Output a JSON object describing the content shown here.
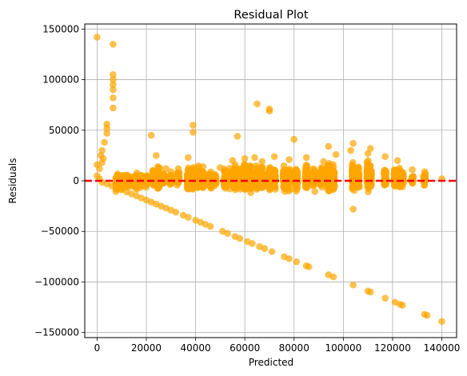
{
  "chart_data": {
    "type": "scatter",
    "title": "Residual Plot",
    "xlabel": "Predicted",
    "ylabel": "Residuals",
    "xlim": [
      -5000,
      146000
    ],
    "ylim": [
      -155000,
      155000
    ],
    "xticks": [
      0,
      20000,
      40000,
      60000,
      80000,
      100000,
      120000,
      140000
    ],
    "yticks": [
      -150000,
      -100000,
      -50000,
      0,
      50000,
      100000,
      150000
    ],
    "grid": true,
    "reference_line": {
      "y": 0,
      "color": "#ff0000",
      "style": "dashed"
    },
    "point_color": "#ffa500",
    "point_opacity": 0.7,
    "series": [
      {
        "values": [
          [
            0,
            142000
          ],
          [
            6500,
            135000
          ],
          [
            6500,
            105000
          ],
          [
            6500,
            100000
          ],
          [
            6500,
            95000
          ],
          [
            6500,
            90000
          ],
          [
            6500,
            82000
          ],
          [
            6500,
            72000
          ],
          [
            4000,
            56000
          ],
          [
            4000,
            52000
          ],
          [
            4000,
            47000
          ],
          [
            3000,
            38000
          ],
          [
            2000,
            30000
          ],
          [
            1500,
            25000
          ],
          [
            2500,
            22000
          ],
          [
            2000,
            18000
          ],
          [
            0,
            16000
          ],
          [
            1000,
            12000
          ],
          [
            0,
            5000
          ],
          [
            1000,
            2000
          ],
          [
            22000,
            45000
          ],
          [
            39000,
            55000
          ],
          [
            39000,
            48000
          ],
          [
            65000,
            76000
          ],
          [
            70000,
            71000
          ],
          [
            70000,
            69000
          ],
          [
            57000,
            44000
          ],
          [
            80000,
            41000
          ],
          [
            104000,
            37000
          ],
          [
            111000,
            32000
          ],
          [
            94000,
            34000
          ],
          [
            24000,
            25000
          ],
          [
            37000,
            23000
          ],
          [
            25000,
            13000
          ],
          [
            28000,
            12000
          ],
          [
            30000,
            9000
          ],
          [
            33000,
            12000
          ],
          [
            43000,
            14000
          ],
          [
            50000,
            13000
          ],
          [
            55000,
            20000
          ],
          [
            60000,
            22000
          ],
          [
            64000,
            23000
          ],
          [
            67000,
            19000
          ],
          [
            72000,
            24000
          ],
          [
            78000,
            21000
          ],
          [
            85000,
            23000
          ],
          [
            92000,
            19000
          ],
          [
            97000,
            26000
          ],
          [
            103000,
            30000
          ],
          [
            110000,
            27000
          ],
          [
            117000,
            24000
          ],
          [
            122000,
            20000
          ],
          [
            128000,
            11000
          ],
          [
            133000,
            9000
          ],
          [
            104000,
            -28000
          ],
          [
            79000,
            -8000
          ],
          [
            78000,
            -10000
          ],
          [
            85000,
            -7000
          ],
          [
            94000,
            -10000
          ],
          [
            96000,
            -8000
          ],
          [
            110000,
            -6000
          ],
          [
            124000,
            -3000
          ],
          [
            133000,
            -4000
          ],
          [
            92000,
            -4000
          ],
          [
            140000,
            2000
          ],
          [
            2000,
            -1500
          ],
          [
            4000,
            -3000
          ],
          [
            6000,
            -5000
          ],
          [
            8000,
            -7000
          ],
          [
            10000,
            -9000
          ],
          [
            12000,
            -11000
          ],
          [
            14000,
            -13000
          ],
          [
            16000,
            -15000
          ],
          [
            18000,
            -17000
          ],
          [
            20000,
            -19000
          ],
          [
            22000,
            -21000
          ],
          [
            24000,
            -23000
          ],
          [
            26000,
            -25000
          ],
          [
            28000,
            -27000
          ],
          [
            30000,
            -29000
          ],
          [
            32000,
            -31000
          ],
          [
            35000,
            -34000
          ],
          [
            37000,
            -36000
          ],
          [
            40000,
            -39000
          ],
          [
            42000,
            -41000
          ],
          [
            44000,
            -43000
          ],
          [
            46000,
            -45000
          ],
          [
            51000,
            -50000
          ],
          [
            53000,
            -52000
          ],
          [
            56000,
            -55000
          ],
          [
            58000,
            -57000
          ],
          [
            61000,
            -60000
          ],
          [
            63000,
            -62000
          ],
          [
            66000,
            -65000
          ],
          [
            68000,
            -67000
          ],
          [
            71000,
            -70000
          ],
          [
            76000,
            -75000
          ],
          [
            78000,
            -77000
          ],
          [
            81000,
            -80000
          ],
          [
            85000,
            -84000
          ],
          [
            86000,
            -85000
          ],
          [
            94000,
            -93000
          ],
          [
            96000,
            -95000
          ],
          [
            104000,
            -103000
          ],
          [
            110000,
            -109000
          ],
          [
            111000,
            -110000
          ],
          [
            117000,
            -116000
          ],
          [
            121000,
            -120000
          ],
          [
            123000,
            -122000
          ],
          [
            124000,
            -123000
          ],
          [
            133000,
            -132000
          ],
          [
            134000,
            -133000
          ],
          [
            140000,
            -139000
          ]
        ],
        "clusters": [
          [
            8000,
            -2000,
            10000,
            60
          ],
          [
            10000,
            -1000,
            8000,
            50
          ],
          [
            12000,
            0,
            8000,
            50
          ],
          [
            14000,
            -1000,
            6000,
            30
          ],
          [
            16000,
            0,
            10000,
            40
          ],
          [
            18000,
            -1000,
            8000,
            30
          ],
          [
            20000,
            0,
            8000,
            30
          ],
          [
            23000,
            2000,
            10000,
            40
          ],
          [
            25000,
            2000,
            14000,
            60
          ],
          [
            27000,
            1000,
            8000,
            30
          ],
          [
            30000,
            1000,
            8000,
            30
          ],
          [
            33000,
            2000,
            10000,
            40
          ],
          [
            37000,
            2000,
            14000,
            60
          ],
          [
            39000,
            3000,
            15000,
            80
          ],
          [
            41000,
            2000,
            14000,
            60
          ],
          [
            43000,
            1000,
            12000,
            50
          ],
          [
            46000,
            1000,
            10000,
            40
          ],
          [
            48000,
            2000,
            8000,
            30
          ],
          [
            52000,
            2000,
            14000,
            60
          ],
          [
            54000,
            2000,
            12000,
            50
          ],
          [
            56000,
            3000,
            16000,
            80
          ],
          [
            58000,
            2000,
            14000,
            70
          ],
          [
            60000,
            3000,
            16000,
            80
          ],
          [
            62000,
            3000,
            16000,
            90
          ],
          [
            65000,
            3000,
            15000,
            80
          ],
          [
            67000,
            2000,
            14000,
            60
          ],
          [
            70000,
            3000,
            16000,
            80
          ],
          [
            72000,
            2000,
            14000,
            60
          ],
          [
            76000,
            3000,
            16000,
            70
          ],
          [
            78000,
            2000,
            14000,
            60
          ],
          [
            81000,
            3000,
            16000,
            70
          ],
          [
            85000,
            4000,
            16000,
            70
          ],
          [
            88000,
            2000,
            14000,
            50
          ],
          [
            91000,
            3000,
            14000,
            50
          ],
          [
            94000,
            4000,
            18000,
            80
          ],
          [
            96000,
            3000,
            16000,
            60
          ],
          [
            104000,
            4000,
            18000,
            80
          ],
          [
            106000,
            3000,
            14000,
            50
          ],
          [
            110000,
            4000,
            18000,
            80
          ],
          [
            111000,
            3000,
            16000,
            60
          ],
          [
            117000,
            3000,
            12000,
            40
          ],
          [
            121000,
            4000,
            14000,
            50
          ],
          [
            123000,
            3000,
            12000,
            40
          ],
          [
            124000,
            2000,
            10000,
            30
          ],
          [
            128000,
            2000,
            8000,
            20
          ],
          [
            133000,
            2000,
            8000,
            25
          ]
        ]
      }
    ]
  }
}
